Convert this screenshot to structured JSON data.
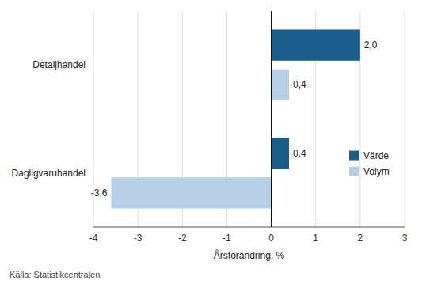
{
  "chart_data": {
    "type": "bar",
    "orientation": "horizontal",
    "categories": [
      "Detaljhandel",
      "Dagligvaruhandel"
    ],
    "series": [
      {
        "name": "Värde",
        "color": "#1b5e8c",
        "values": [
          2.0,
          0.4
        ],
        "value_labels": [
          "2,0",
          "0,4"
        ]
      },
      {
        "name": "Volym",
        "color": "#b8cfe8",
        "values": [
          0.4,
          -3.6
        ],
        "value_labels": [
          "0,4",
          "-3,6"
        ]
      }
    ],
    "xlabel": "Årsförändring, %",
    "xlim": [
      -4,
      3
    ],
    "xticks": [
      -4,
      -3,
      -2,
      -1,
      0,
      1,
      2,
      3
    ],
    "grid": true,
    "data_labels": true,
    "legend": "right",
    "annotations": [
      "Källa: Statistikcentralen"
    ]
  }
}
